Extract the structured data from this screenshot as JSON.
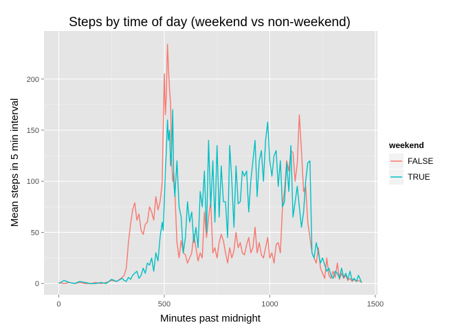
{
  "colors": {
    "panel_bg": "#e5e5e5",
    "grid_major": "#ffffff",
    "grid_minor": "#f2f2f2",
    "axis_tick": "#7f7f7f",
    "legend_key_bg": "#f2f2f2"
  },
  "chart_data": {
    "type": "line",
    "title": "Steps by time of day (weekend vs non-weekend)",
    "xlabel": "Minutes past midnight",
    "ylabel": "Mean steps in 5 min interval",
    "xlim": [
      -70,
      1510
    ],
    "ylim": [
      -11,
      247
    ],
    "x_ticks": [
      0,
      500,
      1000,
      1500
    ],
    "x_tick_labels": [
      "0",
      "500",
      "1000",
      "1500"
    ],
    "y_ticks": [
      0,
      50,
      100,
      150,
      200
    ],
    "y_tick_labels": [
      "0",
      "50",
      "100",
      "150",
      "200"
    ],
    "grid": true,
    "legend": {
      "title": "weekend",
      "position": "right"
    },
    "series": [
      {
        "name": "FALSE",
        "color": "#F8766D",
        "x": [
          0,
          25,
          50,
          75,
          100,
          125,
          150,
          175,
          200,
          225,
          250,
          275,
          300,
          310,
          320,
          330,
          340,
          350,
          360,
          370,
          380,
          390,
          400,
          410,
          420,
          430,
          440,
          450,
          460,
          470,
          480,
          490,
          495,
          500,
          505,
          510,
          515,
          520,
          525,
          530,
          535,
          540,
          545,
          550,
          560,
          570,
          580,
          590,
          600,
          610,
          620,
          630,
          640,
          650,
          660,
          670,
          680,
          690,
          700,
          710,
          720,
          730,
          740,
          750,
          760,
          770,
          780,
          790,
          800,
          810,
          820,
          830,
          840,
          850,
          860,
          870,
          880,
          890,
          900,
          910,
          920,
          930,
          940,
          950,
          960,
          970,
          980,
          990,
          1000,
          1010,
          1020,
          1030,
          1040,
          1050,
          1060,
          1070,
          1080,
          1090,
          1100,
          1110,
          1120,
          1130,
          1140,
          1150,
          1160,
          1170,
          1180,
          1190,
          1200,
          1210,
          1220,
          1230,
          1240,
          1250,
          1260,
          1270,
          1280,
          1290,
          1300,
          1310,
          1320,
          1330,
          1340,
          1350,
          1360,
          1370,
          1380,
          1390,
          1400,
          1410,
          1420,
          1435
        ],
        "values": [
          1,
          0,
          1,
          0,
          1,
          0,
          0,
          1,
          0,
          1,
          3,
          2,
          6,
          8,
          15,
          40,
          58,
          72,
          79,
          62,
          68,
          52,
          48,
          58,
          60,
          75,
          70,
          62,
          85,
          72,
          80,
          98,
          150,
          205,
          165,
          185,
          234,
          210,
          190,
          175,
          120,
          100,
          108,
          90,
          40,
          25,
          42,
          30,
          28,
          20,
          25,
          30,
          48,
          35,
          22,
          30,
          25,
          70,
          45,
          65,
          80,
          30,
          35,
          25,
          40,
          48,
          42,
          30,
          20,
          35,
          25,
          32,
          50,
          35,
          40,
          30,
          28,
          38,
          45,
          30,
          35,
          55,
          30,
          40,
          28,
          25,
          35,
          45,
          25,
          30,
          20,
          38,
          40,
          30,
          75,
          92,
          120,
          110,
          130,
          128,
          100,
          118,
          165,
          130,
          90,
          95,
          60,
          45,
          30,
          25,
          20,
          35,
          15,
          10,
          5,
          25,
          8,
          5,
          12,
          6,
          20,
          4,
          10,
          5,
          8,
          3,
          5,
          2,
          4,
          2,
          3,
          1
        ]
      },
      {
        "name": "TRUE",
        "color": "#00BFC4",
        "x": [
          0,
          25,
          50,
          75,
          100,
          125,
          150,
          175,
          200,
          225,
          250,
          275,
          300,
          310,
          320,
          330,
          340,
          350,
          360,
          370,
          380,
          390,
          400,
          410,
          420,
          430,
          440,
          450,
          460,
          470,
          480,
          490,
          495,
          500,
          505,
          510,
          515,
          520,
          525,
          530,
          535,
          540,
          545,
          550,
          560,
          570,
          580,
          590,
          600,
          610,
          620,
          630,
          640,
          650,
          660,
          670,
          680,
          690,
          700,
          710,
          720,
          730,
          740,
          750,
          760,
          770,
          780,
          790,
          800,
          810,
          820,
          830,
          840,
          850,
          860,
          870,
          880,
          890,
          900,
          910,
          920,
          930,
          940,
          950,
          960,
          970,
          980,
          990,
          1000,
          1010,
          1020,
          1030,
          1040,
          1050,
          1060,
          1070,
          1080,
          1090,
          1100,
          1110,
          1120,
          1130,
          1140,
          1150,
          1160,
          1170,
          1180,
          1190,
          1200,
          1210,
          1220,
          1230,
          1240,
          1250,
          1260,
          1270,
          1280,
          1290,
          1300,
          1310,
          1320,
          1330,
          1340,
          1350,
          1360,
          1370,
          1380,
          1390,
          1400,
          1410,
          1420,
          1435
        ],
        "values": [
          0,
          3,
          1,
          0,
          2,
          1,
          0,
          0,
          1,
          0,
          4,
          2,
          5,
          3,
          2,
          6,
          4,
          8,
          10,
          12,
          5,
          8,
          15,
          10,
          20,
          18,
          25,
          12,
          30,
          22,
          45,
          60,
          52,
          80,
          110,
          130,
          160,
          140,
          150,
          115,
          130,
          170,
          100,
          85,
          120,
          75,
          65,
          30,
          45,
          80,
          60,
          70,
          40,
          55,
          35,
          90,
          75,
          110,
          50,
          140,
          75,
          120,
          60,
          135,
          65,
          115,
          80,
          80,
          45,
          135,
          100,
          55,
          115,
          78,
          80,
          110,
          105,
          110,
          70,
          100,
          120,
          140,
          85,
          120,
          130,
          100,
          140,
          158,
          120,
          105,
          125,
          130,
          95,
          120,
          75,
          80,
          118,
          90,
          135,
          65,
          80,
          95,
          75,
          55,
          70,
          100,
          118,
          120,
          30,
          25,
          40,
          30,
          20,
          25,
          18,
          12,
          15,
          8,
          5,
          12,
          10,
          5,
          15,
          6,
          10,
          4,
          12,
          3,
          5,
          2,
          8,
          1
        ]
      }
    ]
  }
}
